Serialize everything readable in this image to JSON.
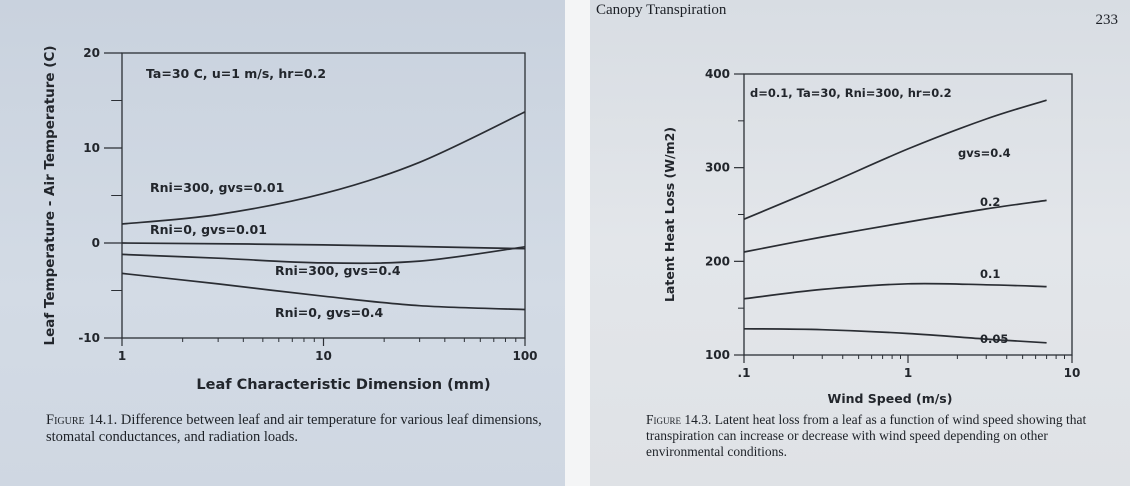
{
  "left_page": {
    "caption_lead": "Figure",
    "caption_text": "14.1. Difference between leaf and air temperature for various leaf dimensions, stomatal conductances, and radiation loads."
  },
  "right_page": {
    "header_title": "Canopy Transpiration",
    "page_number": "233",
    "caption_lead": "Figure",
    "caption_text": "14.3. Latent heat loss from a leaf as a function of wind speed showing that transpiration can increase or decrease with wind speed depending on other environmental conditions."
  },
  "chart_data": [
    {
      "type": "line",
      "xlabel": "Leaf Characteristic Dimension (mm)",
      "ylabel": "Leaf Temperature - Air Temperature (C)",
      "x_scale": "log",
      "xlim": [
        1,
        100
      ],
      "ylim": [
        -10,
        20
      ],
      "x_ticks": [
        "1",
        "10",
        "100"
      ],
      "y_ticks": [
        "20",
        "10",
        "0",
        "-10"
      ],
      "annotation": "Ta=30 C,  u=1 m/s,  hr=0.2",
      "grid": false,
      "series": [
        {
          "name": "Rni=300, gvs=0.01",
          "x": [
            1,
            3,
            10,
            30,
            100
          ],
          "y": [
            2.0,
            3.0,
            5.2,
            8.5,
            13.8
          ]
        },
        {
          "name": "Rni=0, gvs=0.01",
          "x": [
            1,
            10,
            100
          ],
          "y": [
            0.0,
            -0.2,
            -0.6
          ]
        },
        {
          "name": "Rni=300, gvs=0.4",
          "x": [
            1,
            3,
            10,
            30,
            100
          ],
          "y": [
            -1.2,
            -1.6,
            -2.1,
            -1.9,
            -0.4
          ]
        },
        {
          "name": "Rni=0, gvs=0.4",
          "x": [
            1,
            3,
            10,
            30,
            100
          ],
          "y": [
            -3.2,
            -4.3,
            -5.6,
            -6.6,
            -7.0
          ]
        }
      ],
      "series_labels": [
        "Rni=300, gvs=0.01",
        "Rni=0, gvs=0.01",
        "Rni=300, gvs=0.4",
        "Rni=0, gvs=0.4"
      ]
    },
    {
      "type": "line",
      "xlabel": "Wind Speed (m/s)",
      "ylabel": "Latent Heat Loss (W/m2)",
      "x_scale": "log",
      "xlim": [
        0.1,
        10
      ],
      "ylim": [
        100,
        400
      ],
      "x_ticks": [
        ".1",
        "1",
        "10"
      ],
      "y_ticks": [
        "400",
        "300",
        "200",
        "100"
      ],
      "annotation": "d=0.1, Ta=30, Rni=300, hr=0.2",
      "grid": false,
      "series": [
        {
          "name": "gvs=0.4",
          "x": [
            0.1,
            0.3,
            1,
            3,
            7
          ],
          "y": [
            245,
            280,
            320,
            352,
            372
          ]
        },
        {
          "name": "0.2",
          "x": [
            0.1,
            0.3,
            1,
            3,
            7
          ],
          "y": [
            210,
            226,
            242,
            256,
            265
          ]
        },
        {
          "name": "0.1",
          "x": [
            0.1,
            0.3,
            1,
            3,
            7
          ],
          "y": [
            160,
            170,
            176,
            175,
            173
          ]
        },
        {
          "name": "0.05",
          "x": [
            0.1,
            0.3,
            1,
            3,
            7
          ],
          "y": [
            128,
            127,
            123,
            117,
            113
          ]
        }
      ],
      "series_labels": [
        "gvs=0.4",
        "0.2",
        "0.1",
        "0.05"
      ]
    }
  ]
}
